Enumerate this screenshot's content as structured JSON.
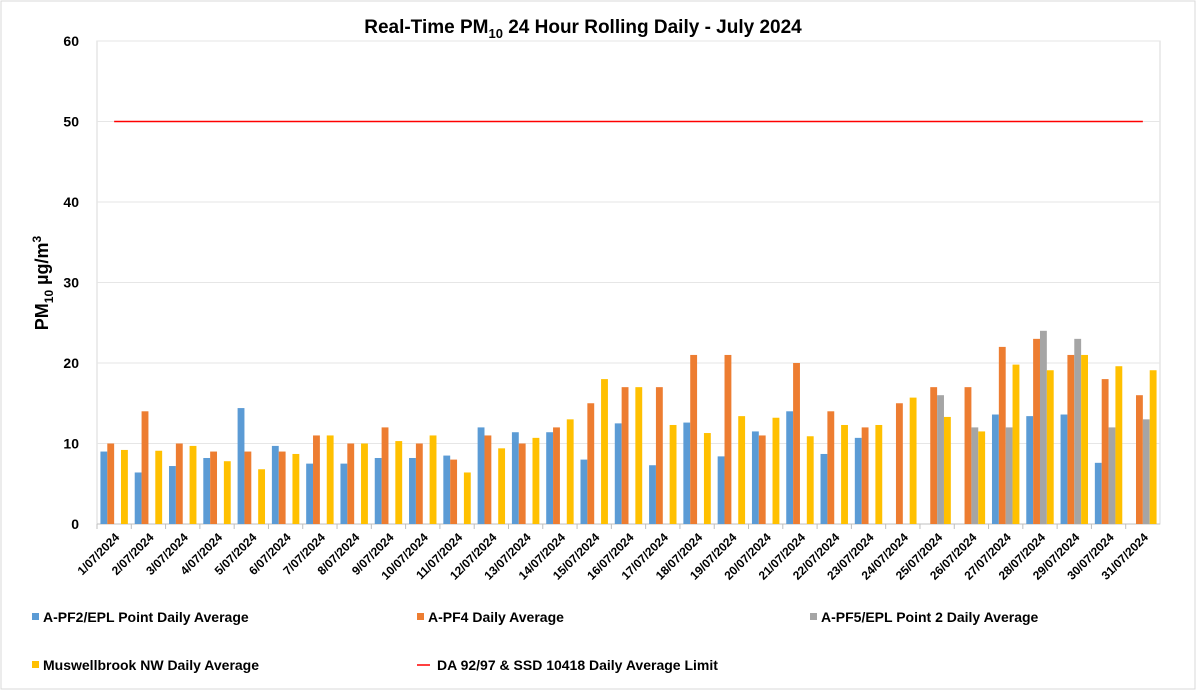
{
  "chart_data": {
    "type": "bar",
    "title": [
      "Real-Time PM",
      "10",
      " 24 Hour Rolling Daily - July 2024"
    ],
    "y_label": [
      "PM",
      "10",
      " µg/m",
      "3"
    ],
    "categories": [
      "1/07/2024",
      "2/07/2024",
      "3/07/2024",
      "4/07/2024",
      "5/07/2024",
      "6/07/2024",
      "7/07/2024",
      "8/07/2024",
      "9/07/2024",
      "10/07/2024",
      "11/07/2024",
      "12/07/2024",
      "13/07/2024",
      "14/07/2024",
      "15/07/2024",
      "16/07/2024",
      "17/07/2024",
      "18/07/2024",
      "19/07/2024",
      "20/07/2024",
      "21/07/2024",
      "22/07/2024",
      "23/07/2024",
      "24/07/2024",
      "25/07/2024",
      "26/07/2024",
      "27/07/2024",
      "28/07/2024",
      "29/07/2024",
      "30/07/2024",
      "31/07/2024"
    ],
    "series": [
      {
        "name": "A-PF2/EPL Point Daily Average",
        "color": "#5b9bd5",
        "type": "bar",
        "values": [
          9,
          6.4,
          7.2,
          8.2,
          14.4,
          9.7,
          7.5,
          7.5,
          8.2,
          8.2,
          8.5,
          12,
          11.4,
          11.4,
          8,
          12.5,
          7.3,
          12.6,
          8.4,
          11.5,
          14,
          8.7,
          10.7,
          null,
          null,
          null,
          13.6,
          13.4,
          13.6,
          7.6,
          null
        ]
      },
      {
        "name": "A-PF4 Daily Average",
        "color": "#ed7d31",
        "type": "bar",
        "values": [
          10,
          14,
          10,
          9,
          9,
          9,
          11,
          10,
          12,
          10,
          8,
          11,
          10,
          12,
          15,
          17,
          17,
          21,
          21,
          11,
          20,
          14,
          12,
          15,
          17,
          17,
          22,
          23,
          21,
          18,
          16
        ]
      },
      {
        "name": "A-PF5/EPL Point 2 Daily Average",
        "color": "#a5a5a5",
        "type": "bar",
        "values": [
          null,
          null,
          null,
          null,
          null,
          null,
          null,
          null,
          null,
          null,
          null,
          null,
          null,
          null,
          null,
          null,
          null,
          null,
          null,
          null,
          null,
          null,
          null,
          null,
          16,
          12,
          12,
          24,
          23,
          12,
          13
        ]
      },
      {
        "name": "Muswellbrook NW Daily Average",
        "color": "#ffc000",
        "type": "bar",
        "values": [
          9.2,
          9.1,
          9.7,
          7.8,
          6.8,
          8.7,
          11,
          10,
          10.3,
          11,
          6.4,
          9.4,
          10.7,
          13,
          18,
          17,
          12.3,
          11.3,
          13.4,
          13.2,
          10.9,
          12.3,
          12.3,
          15.7,
          13.3,
          11.5,
          19.8,
          19.1,
          21,
          19.6,
          19.1
        ]
      },
      {
        "name": "DA 92/97 & SSD 10418 Daily Average Limit",
        "color": "#ff0000",
        "type": "line",
        "values": [
          50,
          50,
          50,
          50,
          50,
          50,
          50,
          50,
          50,
          50,
          50,
          50,
          50,
          50,
          50,
          50,
          50,
          50,
          50,
          50,
          50,
          50,
          50,
          50,
          50,
          50,
          50,
          50,
          50,
          50,
          50
        ]
      }
    ],
    "ylim": [
      0,
      60
    ],
    "yticks": [
      0,
      10,
      20,
      30,
      40,
      50,
      60
    ],
    "grid": true
  }
}
